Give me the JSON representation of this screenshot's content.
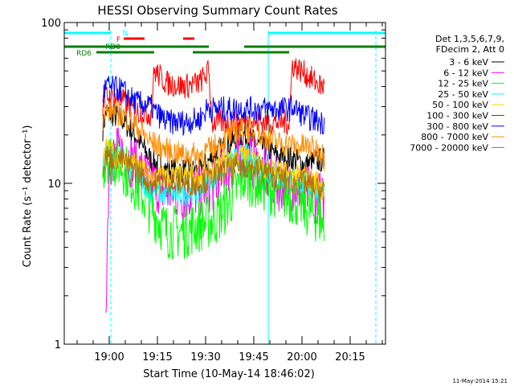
{
  "chart_data": {
    "type": "line",
    "title": "HESSI Observing Summary Count Rates",
    "xlabel": "Start Time (10-May-14 18:46:02)",
    "ylabel": "Count Rate (s⁻¹ detector⁻¹)",
    "yscale": "log",
    "ylim": [
      1,
      100
    ],
    "xlim_minutes_from_start": [
      0,
      100
    ],
    "x_tick_labels": [
      "19:00",
      "19:15",
      "19:30",
      "19:45",
      "20:00",
      "20:15"
    ],
    "x_tick_minutes": [
      14,
      29,
      44,
      59,
      74,
      89
    ],
    "y_tick_labels": [
      "1",
      "10",
      "100"
    ],
    "y_tick_values": [
      1,
      10,
      100
    ],
    "footer_date": "11-May-2014 15:21",
    "legend": {
      "header_line1": "Det 1,3,5,6,7,9,",
      "header_line2": "FDecim 2, Att 0",
      "placement": "right"
    },
    "series": [
      {
        "name": "3 - 6 keV",
        "color": "#000000",
        "x": [
          12,
          13,
          18,
          22,
          27,
          32,
          37,
          42,
          47,
          50,
          56,
          61,
          66,
          72,
          75,
          80,
          81
        ],
        "y": [
          22,
          28,
          25,
          20,
          14,
          12,
          12,
          12,
          15,
          17,
          20,
          17,
          15,
          14,
          13,
          14,
          14
        ]
      },
      {
        "name": "6 - 12 keV",
        "color": "#ff00ff",
        "x": [
          13,
          14,
          18,
          22,
          27,
          32,
          37,
          42,
          47,
          50,
          56,
          61,
          66,
          72,
          75,
          80,
          81
        ],
        "y": [
          2,
          14,
          16,
          13,
          10,
          9,
          8.5,
          9,
          10,
          12,
          15,
          12,
          10,
          9.5,
          9,
          8,
          7
        ]
      },
      {
        "name": "12 - 25 keV",
        "color": "#00ff00",
        "x": [
          12,
          13,
          18,
          22,
          27,
          32,
          37,
          42,
          47,
          50,
          56,
          61,
          66,
          72,
          75,
          80,
          81
        ],
        "y": [
          12,
          15,
          13,
          10,
          7,
          5,
          5,
          5.5,
          6,
          7,
          11,
          10,
          9,
          8,
          7,
          6,
          5
        ]
      },
      {
        "name": "25 - 50 keV",
        "color": "#00ffff",
        "x": [
          12,
          13,
          18,
          22,
          27,
          32,
          37,
          42,
          47,
          50,
          56,
          61,
          66,
          72,
          75,
          80,
          81
        ],
        "y": [
          14,
          16,
          14,
          12,
          9,
          8.5,
          8.5,
          9,
          11,
          13,
          15,
          13,
          11,
          10,
          10,
          9,
          9
        ]
      },
      {
        "name": "50 - 100 keV",
        "color": "#ffd200",
        "x": [
          12,
          13,
          18,
          22,
          27,
          32,
          37,
          42,
          47,
          50,
          56,
          61,
          66,
          72,
          75,
          80,
          81
        ],
        "y": [
          14,
          16,
          14,
          13,
          11,
          11,
          11,
          11,
          12,
          14,
          15,
          13,
          12,
          11,
          11,
          10,
          9
        ]
      },
      {
        "name": "100 - 300 keV",
        "color": "#ff0000",
        "x": [
          12,
          13,
          18,
          22,
          27,
          28,
          32,
          37,
          42,
          45,
          46,
          50,
          56,
          61,
          66,
          70,
          71,
          75,
          80,
          81
        ],
        "y": [
          30,
          35,
          33,
          28,
          27,
          50,
          42,
          40,
          42,
          50,
          24,
          24,
          24,
          24,
          24,
          24,
          55,
          48,
          40,
          40
        ]
      },
      {
        "name": "300 - 800 keV",
        "color": "#0000ff",
        "x": [
          12,
          13,
          18,
          22,
          27,
          28,
          32,
          37,
          42,
          45,
          46,
          50,
          56,
          61,
          66,
          70,
          71,
          75,
          80,
          81
        ],
        "y": [
          35,
          40,
          38,
          32,
          30,
          28,
          24,
          24,
          25,
          30,
          29,
          29,
          29,
          29,
          29,
          29,
          30,
          26,
          24,
          24
        ]
      },
      {
        "name": "800 - 7000 keV",
        "color": "#ff8c00",
        "x": [
          12,
          13,
          18,
          22,
          27,
          32,
          37,
          42,
          47,
          50,
          56,
          61,
          66,
          72,
          75,
          80,
          81
        ],
        "y": [
          25,
          28,
          27,
          23,
          18,
          16,
          15,
          15,
          17,
          19,
          22,
          20,
          18,
          17,
          17,
          16,
          14
        ]
      },
      {
        "name": "7000 - 20000 keV",
        "color": "#aa7700",
        "x": [
          12,
          13,
          18,
          22,
          27,
          32,
          37,
          42,
          47,
          50,
          56,
          61,
          66,
          72,
          75,
          80,
          81
        ],
        "y": [
          13,
          15,
          14,
          12,
          10,
          10,
          10,
          10,
          11,
          12,
          13,
          12,
          11,
          10,
          10,
          9,
          9
        ]
      }
    ],
    "flag_bars": [
      {
        "label": "N",
        "color": "#00ffff",
        "row": "top",
        "segments": [
          [
            0,
            14.5
          ],
          [
            63.5,
            100
          ]
        ]
      },
      {
        "label": "F",
        "color": "#ff0000",
        "row": "flare",
        "segments": [
          [
            18.5,
            25
          ],
          [
            37,
            40.5
          ]
        ]
      },
      {
        "label": "RD0",
        "color": "#008000",
        "row": "rd0",
        "segments": [
          [
            0,
            45
          ],
          [
            56,
            100
          ]
        ]
      },
      {
        "label": "RD6",
        "color": "#008000",
        "row": "rd6",
        "segments": [
          [
            10,
            28
          ],
          [
            40,
            70
          ]
        ]
      }
    ],
    "vertical_markers": [
      {
        "color": "#00ffff",
        "style": "dashed",
        "x": 14.5
      },
      {
        "color": "#00ffff",
        "style": "solid",
        "x": 63.5
      },
      {
        "color": "#00ffff",
        "style": "dashed",
        "x": 97
      }
    ]
  }
}
